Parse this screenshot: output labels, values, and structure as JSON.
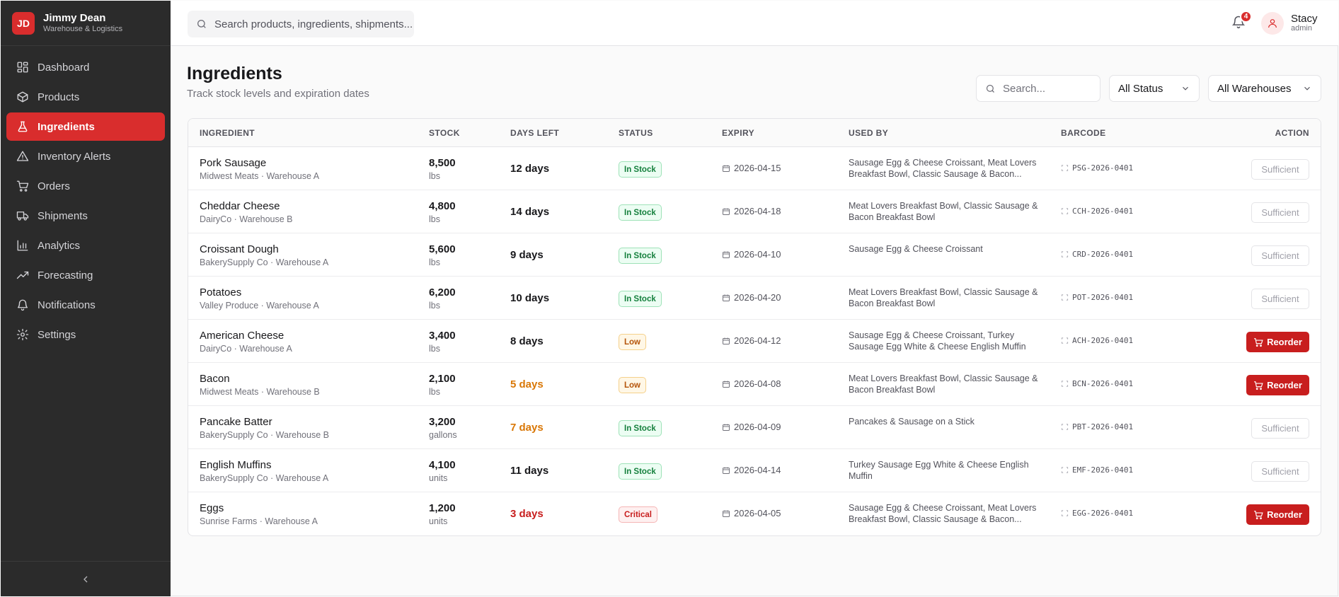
{
  "brand": {
    "initials": "JD",
    "name": "Jimmy Dean",
    "subtitle": "Warehouse & Logistics"
  },
  "sidebar": {
    "items": [
      {
        "label": "Dashboard",
        "icon": "grid-icon"
      },
      {
        "label": "Products",
        "icon": "box-icon"
      },
      {
        "label": "Ingredients",
        "icon": "flask-icon",
        "active": true
      },
      {
        "label": "Inventory Alerts",
        "icon": "warning-icon"
      },
      {
        "label": "Orders",
        "icon": "cart-icon"
      },
      {
        "label": "Shipments",
        "icon": "truck-icon"
      },
      {
        "label": "Analytics",
        "icon": "bar-chart-icon"
      },
      {
        "label": "Forecasting",
        "icon": "trend-icon"
      },
      {
        "label": "Notifications",
        "icon": "bell-icon"
      },
      {
        "label": "Settings",
        "icon": "gear-icon"
      }
    ]
  },
  "topbar": {
    "search_placeholder": "Search products, ingredients, shipments...",
    "notification_count": "4",
    "user_name": "Stacy",
    "user_role": "admin"
  },
  "page": {
    "title": "Ingredients",
    "subtitle": "Track stock levels and expiration dates",
    "search_placeholder": "Search...",
    "status_filter": "All Status",
    "warehouse_filter": "All Warehouses"
  },
  "table": {
    "headers": [
      "INGREDIENT",
      "STOCK",
      "DAYS LEFT",
      "STATUS",
      "EXPIRY",
      "USED BY",
      "BARCODE",
      "ACTION"
    ],
    "rows": [
      {
        "name": "Pork Sausage",
        "supplier": "Midwest Meats · Warehouse A",
        "stock": "8,500",
        "unit": "lbs",
        "days": "12 days",
        "days_level": "normal",
        "status": "In Stock",
        "status_level": "ok",
        "expiry": "2026-04-15",
        "used_by": "Sausage Egg & Cheese Croissant, Meat Lovers Breakfast Bowl, Classic Sausage & Bacon...",
        "barcode": "PSG-2026-0401",
        "action": "Sufficient"
      },
      {
        "name": "Cheddar Cheese",
        "supplier": "DairyCo · Warehouse B",
        "stock": "4,800",
        "unit": "lbs",
        "days": "14 days",
        "days_level": "normal",
        "status": "In Stock",
        "status_level": "ok",
        "expiry": "2026-04-18",
        "used_by": "Meat Lovers Breakfast Bowl, Classic Sausage & Bacon Breakfast Bowl",
        "barcode": "CCH-2026-0401",
        "action": "Sufficient"
      },
      {
        "name": "Croissant Dough",
        "supplier": "BakerySupply Co · Warehouse A",
        "stock": "5,600",
        "unit": "lbs",
        "days": "9 days",
        "days_level": "normal",
        "status": "In Stock",
        "status_level": "ok",
        "expiry": "2026-04-10",
        "used_by": "Sausage Egg & Cheese Croissant",
        "barcode": "CRD-2026-0401",
        "action": "Sufficient"
      },
      {
        "name": "Potatoes",
        "supplier": "Valley Produce · Warehouse A",
        "stock": "6,200",
        "unit": "lbs",
        "days": "10 days",
        "days_level": "normal",
        "status": "In Stock",
        "status_level": "ok",
        "expiry": "2026-04-20",
        "used_by": "Meat Lovers Breakfast Bowl, Classic Sausage & Bacon Breakfast Bowl",
        "barcode": "POT-2026-0401",
        "action": "Sufficient"
      },
      {
        "name": "American Cheese",
        "supplier": "DairyCo · Warehouse A",
        "stock": "3,400",
        "unit": "lbs",
        "days": "8 days",
        "days_level": "normal",
        "status": "Low",
        "status_level": "low",
        "expiry": "2026-04-12",
        "used_by": "Sausage Egg & Cheese Croissant, Turkey Sausage Egg White & Cheese English Muffin",
        "barcode": "ACH-2026-0401",
        "action": "Reorder"
      },
      {
        "name": "Bacon",
        "supplier": "Midwest Meats · Warehouse B",
        "stock": "2,100",
        "unit": "lbs",
        "days": "5 days",
        "days_level": "warn",
        "status": "Low",
        "status_level": "low",
        "expiry": "2026-04-08",
        "used_by": "Meat Lovers Breakfast Bowl, Classic Sausage & Bacon Breakfast Bowl",
        "barcode": "BCN-2026-0401",
        "action": "Reorder"
      },
      {
        "name": "Pancake Batter",
        "supplier": "BakerySupply Co · Warehouse B",
        "stock": "3,200",
        "unit": "gallons",
        "days": "7 days",
        "days_level": "warn",
        "status": "In Stock",
        "status_level": "ok",
        "expiry": "2026-04-09",
        "used_by": "Pancakes & Sausage on a Stick",
        "barcode": "PBT-2026-0401",
        "action": "Sufficient"
      },
      {
        "name": "English Muffins",
        "supplier": "BakerySupply Co · Warehouse A",
        "stock": "4,100",
        "unit": "units",
        "days": "11 days",
        "days_level": "normal",
        "status": "In Stock",
        "status_level": "ok",
        "expiry": "2026-04-14",
        "used_by": "Turkey Sausage Egg White & Cheese English Muffin",
        "barcode": "EMF-2026-0401",
        "action": "Sufficient"
      },
      {
        "name": "Eggs",
        "supplier": "Sunrise Farms · Warehouse A",
        "stock": "1,200",
        "unit": "units",
        "days": "3 days",
        "days_level": "critical",
        "status": "Critical",
        "status_level": "critical",
        "expiry": "2026-04-05",
        "used_by": "Sausage Egg & Cheese Croissant, Meat Lovers Breakfast Bowl, Classic Sausage & Bacon...",
        "barcode": "EGG-2026-0401",
        "action": "Reorder"
      }
    ]
  },
  "colors": {
    "accent": "#d92d2d",
    "ok": "#15803d",
    "low": "#b45309",
    "critical": "#c81e1e",
    "warn_text": "#d97706"
  }
}
